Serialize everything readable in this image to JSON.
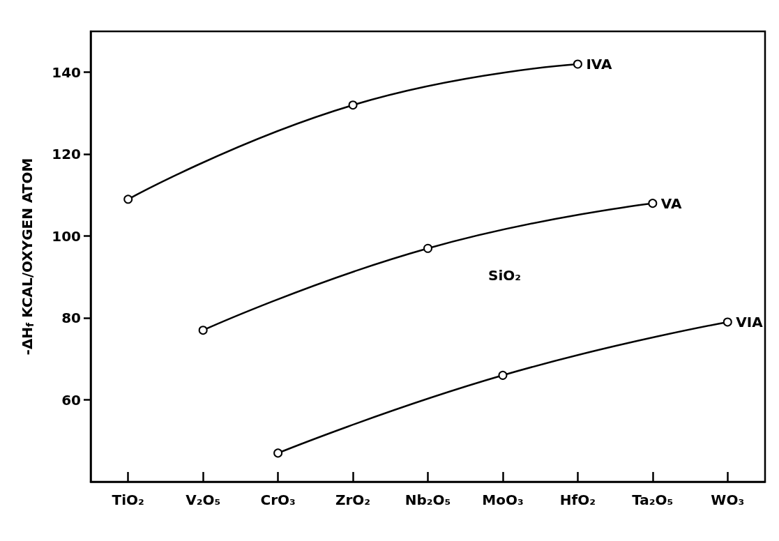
{
  "chart_data": {
    "type": "line",
    "ylabel": "-ΔH$_{f}$ KCAL/OXYGEN ATOM",
    "categories": [
      "TiO₂",
      "V₂O₅",
      "CrO₃",
      "ZrO₂",
      "Nb₂O₅",
      "MoO₃",
      "HfO₂",
      "Ta₂O₅",
      "WO₃"
    ],
    "series": [
      {
        "name": "IVA",
        "color": "#000000",
        "values": [
          109,
          null,
          null,
          132,
          null,
          null,
          142,
          null,
          null
        ]
      },
      {
        "name": "VA",
        "color": "#000000",
        "values": [
          null,
          77,
          null,
          null,
          97,
          null,
          null,
          108,
          null
        ]
      },
      {
        "name": "VIA",
        "color": "#000000",
        "values": [
          null,
          null,
          47,
          null,
          null,
          66,
          null,
          null,
          79
        ]
      }
    ],
    "ylim": [
      40,
      150
    ],
    "yticks": [
      60,
      80,
      100,
      120,
      140
    ],
    "annotations": [
      "SiO₂"
    ],
    "grid": false,
    "legend": false,
    "marker": "circle",
    "line_style": "solid"
  }
}
